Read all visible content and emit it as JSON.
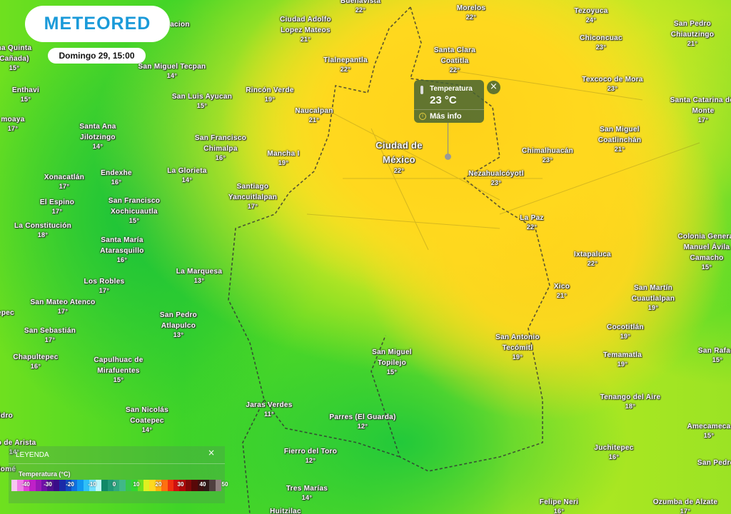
{
  "brand": {
    "logo": "METEORED"
  },
  "datetime": "Domingo 29, 15:00",
  "popup": {
    "icon": "thermometer-icon",
    "title": "Temperatura",
    "value": "23 °C",
    "more": "Más info",
    "close": "×"
  },
  "legend": {
    "title": "LEYENDA",
    "close": "×",
    "variable": "Temperatura (°C)",
    "ticks": [
      "-40",
      "-30",
      "-20",
      "-10",
      "0",
      "10",
      "20",
      "30",
      "40",
      "50"
    ],
    "colors": [
      "#f7c8f0",
      "#f07ee8",
      "#e040d8",
      "#c020c8",
      "#9a18b8",
      "#7010a8",
      "#501090",
      "#3a0c88",
      "#1a2aa8",
      "#1048c0",
      "#1070e0",
      "#1098f0",
      "#30c0f8",
      "#70e0ff",
      "#c0f8ff",
      "#108868",
      "#209878",
      "#30a880",
      "#40b888",
      "#38c848",
      "#30d830",
      "#70e020",
      "#e0f020",
      "#ffd820",
      "#ffb010",
      "#ff7010",
      "#f03010",
      "#d01010",
      "#b00808",
      "#800808",
      "#580808",
      "#401010",
      "#301818",
      "#504040",
      "#908080"
    ]
  },
  "places": [
    {
      "name": [
        "Buenavista"
      ],
      "temp": "22°"
    },
    {
      "name": [
        "Morelos"
      ],
      "temp": "22°"
    },
    {
      "name": [
        "Tezoyuca"
      ],
      "temp": "24°"
    },
    {
      "name": [
        "Ciudad Adolfo",
        "Lopez Mateos"
      ],
      "temp": "21°"
    },
    {
      "name": [
        "Chiconcuac"
      ],
      "temp": "23°"
    },
    {
      "name": [
        "San Pedro",
        "Chiautzingo"
      ],
      "temp": "21°"
    },
    {
      "name": [
        "acion"
      ],
      "temp": ""
    },
    {
      "name": [
        "na Quinta",
        "Cañada)"
      ],
      "temp": "15°"
    },
    {
      "name": [
        "Santa Clara",
        "Coatitla"
      ],
      "temp": "22°"
    },
    {
      "name": [
        "Tlalnepantla"
      ],
      "temp": "22°"
    },
    {
      "name": [
        "San Miguel Tecpan"
      ],
      "temp": "14°"
    },
    {
      "name": [
        "Texcoco de Mora"
      ],
      "temp": "23°"
    },
    {
      "name": [
        "Enthavi"
      ],
      "temp": "15°"
    },
    {
      "name": [
        "Rincón Verde"
      ],
      "temp": "19°"
    },
    {
      "name": [
        "San Luis Ayucan"
      ],
      "temp": "15°"
    },
    {
      "name": [
        "Santa Catarina del",
        "Monte"
      ],
      "temp": "17°"
    },
    {
      "name": [
        "Naucalpan"
      ],
      "temp": "21°"
    },
    {
      "name": [
        "moaya"
      ],
      "temp": "17°"
    },
    {
      "name": [
        "Santa Ana",
        "Jilotzingo"
      ],
      "temp": "14°"
    },
    {
      "name": [
        "San Miguel",
        "Coatlinchán"
      ],
      "temp": "21°"
    },
    {
      "name": [
        "San Francisco",
        "Chimalpa"
      ],
      "temp": "16°"
    },
    {
      "name": [
        "Ciudad de",
        "México"
      ],
      "temp": "22°"
    },
    {
      "name": [
        "Mancha I"
      ],
      "temp": "19°"
    },
    {
      "name": [
        "Chimalhuacán"
      ],
      "temp": "23°"
    },
    {
      "name": [
        "La Glorieta"
      ],
      "temp": "14°"
    },
    {
      "name": [
        "Xonacatlán"
      ],
      "temp": "17°"
    },
    {
      "name": [
        "Endexhe"
      ],
      "temp": "16°"
    },
    {
      "name": [
        "Nezahualcóyotl"
      ],
      "temp": "23°"
    },
    {
      "name": [
        "Santiago",
        "Yancuitlalpan"
      ],
      "temp": "17°"
    },
    {
      "name": [
        "El Espino"
      ],
      "temp": "17°"
    },
    {
      "name": [
        "San Francisco",
        "Xochicuautla"
      ],
      "temp": "15°"
    },
    {
      "name": [
        "La Paz"
      ],
      "temp": "22°"
    },
    {
      "name": [
        "La Constitución"
      ],
      "temp": "18°"
    },
    {
      "name": [
        "Colonia General",
        "Manuel Ávila",
        "Camacho"
      ],
      "temp": "15°"
    },
    {
      "name": [
        "Santa María",
        "Atarasquillo"
      ],
      "temp": "16°"
    },
    {
      "name": [
        "Ixtapaluca"
      ],
      "temp": "22°"
    },
    {
      "name": [
        "La Marquesa"
      ],
      "temp": "13°"
    },
    {
      "name": [
        "Los Robles"
      ],
      "temp": "17°"
    },
    {
      "name": [
        "Xico"
      ],
      "temp": "21°"
    },
    {
      "name": [
        "San Martín",
        "Cuautlalpan"
      ],
      "temp": "19°"
    },
    {
      "name": [
        "San Mateo Atenco"
      ],
      "temp": "17°"
    },
    {
      "name": [
        "epec"
      ],
      "temp": ""
    },
    {
      "name": [
        "San Pedro",
        "Atlapulco"
      ],
      "temp": "13°"
    },
    {
      "name": [
        "Cocotitlán"
      ],
      "temp": "19°"
    },
    {
      "name": [
        "San Sebastián"
      ],
      "temp": "17°"
    },
    {
      "name": [
        "San Antonio",
        "Tecómitl"
      ],
      "temp": "19°"
    },
    {
      "name": [
        "Temamatla"
      ],
      "temp": "19°"
    },
    {
      "name": [
        "San Rafael"
      ],
      "temp": "15°"
    },
    {
      "name": [
        "Chapultepec"
      ],
      "temp": "16°"
    },
    {
      "name": [
        "San Miguel",
        "Topilejo"
      ],
      "temp": "15°"
    },
    {
      "name": [
        "Capulhuac de",
        "Mirafuentes"
      ],
      "temp": "15°"
    },
    {
      "name": [
        "Jaras Verdes"
      ],
      "temp": "11°"
    },
    {
      "name": [
        "Tenango del Aire"
      ],
      "temp": "18°"
    },
    {
      "name": [
        "San Nicolás",
        "Coatepec"
      ],
      "temp": "14°"
    },
    {
      "name": [
        "Parres (El Guarda)"
      ],
      "temp": "12°"
    },
    {
      "name": [
        "ldro"
      ],
      "temp": ""
    },
    {
      "name": [
        "Amecameca"
      ],
      "temp": "15°"
    },
    {
      "name": [
        "go de Arista"
      ],
      "temp": "14°"
    },
    {
      "name": [
        "Fierro del Toro"
      ],
      "temp": "12°"
    },
    {
      "name": [
        "Juchitepec"
      ],
      "temp": "16°"
    },
    {
      "name": [
        "San Pedro"
      ],
      "temp": ""
    },
    {
      "name": [
        "lomé"
      ],
      "temp": ""
    },
    {
      "name": [
        "Tres Marías"
      ],
      "temp": "14°"
    },
    {
      "name": [
        "Felipe Neri"
      ],
      "temp": "16°"
    },
    {
      "name": [
        "Ozumba de Alzate"
      ],
      "temp": "17°"
    },
    {
      "name": [
        "Huitzilac"
      ],
      "temp": ""
    }
  ]
}
